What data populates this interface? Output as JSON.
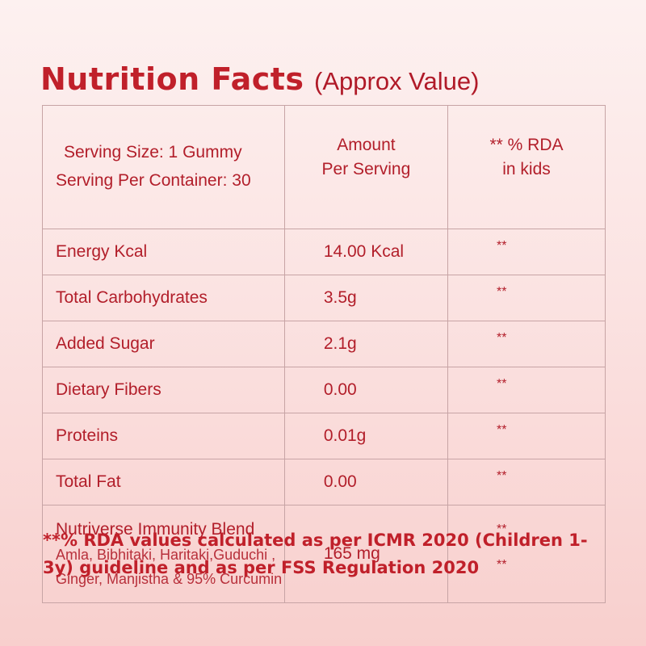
{
  "title": {
    "main": "Nutrition Facts",
    "sub": "(Approx Value)"
  },
  "table": {
    "header": {
      "serving_size": "Serving Size: 1 Gummy",
      "serving_per_container": "Serving Per Container: 30",
      "amount_line1": "Amount",
      "amount_line2": "Per Serving",
      "rda_line1": "** % RDA",
      "rda_line2": "in kids"
    },
    "rows": [
      {
        "name": "Energy Kcal",
        "amount": "14.00 Kcal",
        "rda": "**"
      },
      {
        "name": "Total Carbohydrates",
        "amount": "3.5g",
        "rda": "**"
      },
      {
        "name": "Added Sugar",
        "amount": "2.1g",
        "rda": "**"
      },
      {
        "name": "Dietary Fibers",
        "amount": "0.00",
        "rda": "**"
      },
      {
        "name": "Proteins",
        "amount": "0.01g",
        "rda": "**"
      },
      {
        "name": "Total Fat",
        "amount": "0.00",
        "rda": "**"
      }
    ],
    "blend": {
      "name": "Nutriverse Immunity  Blend",
      "ingredients_line1": "Amla, Bibhitaki, Haritaki,Guduchi ,",
      "ingredients_line2": "Ginger, Manjistha & 95% Curcumin",
      "amount": "165 mg",
      "rda1": "**",
      "rda2": "**"
    }
  },
  "footnote": "**% RDA values calculated as per ICMR 2020 (Children 1-3y) guideline and as per FSS Regulation 2020",
  "colors": {
    "text_red": "#c0202a",
    "border": "#c7a4a5",
    "bg_top": "#fdf1f0",
    "bg_bottom": "#f8cfcd"
  }
}
